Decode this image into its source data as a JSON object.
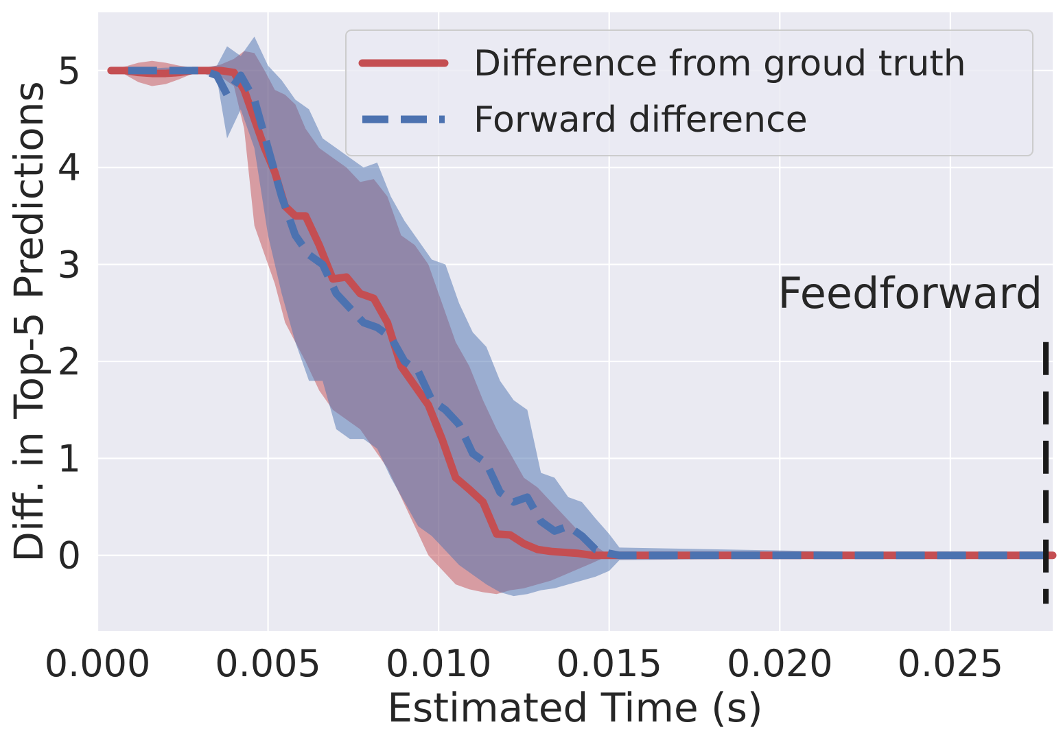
{
  "chart_data": {
    "type": "line",
    "title": "",
    "xlabel": "Estimated Time (s)",
    "ylabel": "Diff. in Top-5 Predictions",
    "xlim": [
      0.0,
      0.028
    ],
    "ylim": [
      -0.78,
      5.6
    ],
    "grid": true,
    "xticks": [
      0.0,
      0.005,
      0.01,
      0.015,
      0.02,
      0.025
    ],
    "xtick_labels": [
      "0.000",
      "0.005",
      "0.010",
      "0.015",
      "0.020",
      "0.025"
    ],
    "yticks": [
      0,
      1,
      2,
      3,
      4,
      5
    ],
    "ytick_labels": [
      "0",
      "1",
      "2",
      "3",
      "4",
      "5"
    ],
    "legend_position": "top-right",
    "series": [
      {
        "name": "Difference from groud truth",
        "color": "#c44e52",
        "style": "solid",
        "x": [
          0.0004,
          0.0008,
          0.0012,
          0.0016,
          0.002,
          0.0024,
          0.0028,
          0.0032,
          0.0036,
          0.004,
          0.0043,
          0.0046,
          0.0049,
          0.0052,
          0.0055,
          0.0058,
          0.0061,
          0.0065,
          0.0069,
          0.0073,
          0.0077,
          0.0081,
          0.0085,
          0.0089,
          0.0093,
          0.0097,
          0.0101,
          0.0105,
          0.0109,
          0.0113,
          0.0117,
          0.0121,
          0.0125,
          0.0129,
          0.0133,
          0.0137,
          0.0141,
          0.0145,
          0.015,
          0.028
        ],
        "values": [
          5.0,
          5.0,
          4.98,
          4.97,
          4.97,
          4.98,
          5.0,
          5.0,
          5.0,
          4.98,
          4.8,
          4.5,
          4.2,
          3.95,
          3.6,
          3.5,
          3.5,
          3.2,
          2.85,
          2.87,
          2.7,
          2.65,
          2.4,
          1.95,
          1.75,
          1.55,
          1.2,
          0.8,
          0.68,
          0.55,
          0.22,
          0.21,
          0.12,
          0.06,
          0.04,
          0.03,
          0.02,
          0.0,
          0.0,
          0.0
        ],
        "band_upper": [
          5.02,
          5.04,
          5.08,
          5.1,
          5.08,
          5.05,
          5.03,
          5.03,
          5.06,
          5.12,
          5.2,
          5.18,
          5.0,
          4.8,
          4.75,
          4.65,
          4.4,
          4.2,
          4.1,
          4.0,
          3.85,
          3.88,
          3.7,
          3.3,
          3.2,
          3.0,
          2.6,
          2.2,
          1.95,
          1.6,
          1.3,
          1.05,
          0.8,
          0.7,
          0.55,
          0.4,
          0.25,
          0.12,
          0.0,
          0.0
        ],
        "band_lower": [
          4.98,
          4.96,
          4.88,
          4.84,
          4.86,
          4.91,
          4.97,
          4.97,
          4.94,
          4.84,
          4.4,
          3.4,
          3.1,
          2.8,
          2.4,
          2.2,
          2.0,
          1.7,
          1.5,
          1.4,
          1.3,
          1.1,
          0.9,
          0.6,
          0.3,
          0.0,
          -0.15,
          -0.3,
          -0.35,
          -0.38,
          -0.4,
          -0.36,
          -0.34,
          -0.3,
          -0.26,
          -0.2,
          -0.14,
          -0.08,
          0.0,
          0.0
        ]
      },
      {
        "name": "Forward difference",
        "color": "#4c72b0",
        "style": "dashed",
        "x": [
          0.0009,
          0.0015,
          0.002,
          0.0026,
          0.0031,
          0.0035,
          0.0038,
          0.0042,
          0.0046,
          0.005,
          0.0054,
          0.0058,
          0.0062,
          0.0066,
          0.007,
          0.0074,
          0.0078,
          0.0082,
          0.0086,
          0.009,
          0.0094,
          0.0098,
          0.0102,
          0.0106,
          0.011,
          0.0114,
          0.0118,
          0.0122,
          0.0126,
          0.013,
          0.0134,
          0.0138,
          0.0142,
          0.0146,
          0.015,
          0.0153,
          0.028
        ],
        "values": [
          5.0,
          5.0,
          5.0,
          5.0,
          5.0,
          4.95,
          4.75,
          4.95,
          4.7,
          4.2,
          3.7,
          3.3,
          3.1,
          3.0,
          2.7,
          2.55,
          2.4,
          2.35,
          2.25,
          2.0,
          1.9,
          1.6,
          1.5,
          1.35,
          1.05,
          0.95,
          0.65,
          0.55,
          0.6,
          0.35,
          0.25,
          0.3,
          0.2,
          0.06,
          0.02,
          0.0,
          0.0
        ],
        "band_upper": [
          5.0,
          5.02,
          5.03,
          5.03,
          5.03,
          5.05,
          5.25,
          5.15,
          5.35,
          5.05,
          4.9,
          4.7,
          4.6,
          4.3,
          4.2,
          4.1,
          4.0,
          4.05,
          3.7,
          3.45,
          3.25,
          3.05,
          3.0,
          2.6,
          2.3,
          2.15,
          1.8,
          1.6,
          1.5,
          0.85,
          0.8,
          0.6,
          0.55,
          0.38,
          0.22,
          0.08,
          0.0
        ],
        "band_lower": [
          5.0,
          4.98,
          4.97,
          4.97,
          4.97,
          4.92,
          4.3,
          4.6,
          4.2,
          3.3,
          2.7,
          2.2,
          1.8,
          1.8,
          1.3,
          1.2,
          1.2,
          1.1,
          0.8,
          0.55,
          0.3,
          0.2,
          0.05,
          -0.1,
          -0.2,
          -0.3,
          -0.38,
          -0.42,
          -0.4,
          -0.36,
          -0.34,
          -0.3,
          -0.26,
          -0.22,
          -0.16,
          -0.05,
          0.0
        ]
      }
    ],
    "annotations": [
      {
        "text": "Feedforward",
        "x": 0.0277,
        "y": 2.55,
        "align": "right"
      }
    ],
    "vline": {
      "x": 0.0278,
      "y_from": -0.5,
      "y_to": 2.2,
      "color": "#1a1a1a",
      "style": "dashed"
    }
  },
  "colors": {
    "axes_background": "#eaeaf2",
    "grid": "#ffffff",
    "text": "#262626",
    "legend_background": "#eaeaf2",
    "legend_border": "#cccccc"
  }
}
